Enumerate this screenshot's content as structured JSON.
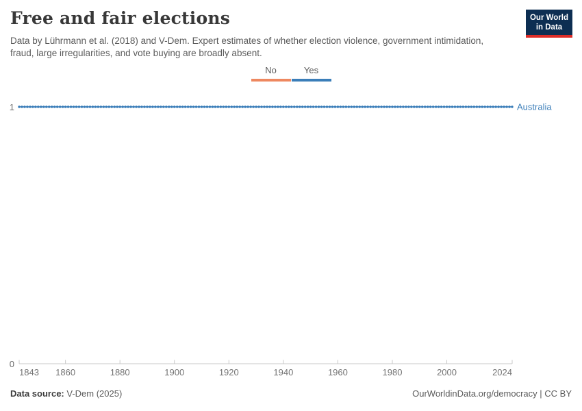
{
  "header": {
    "title": "Free and fair elections",
    "subtitle": "Data by Lührmann et al. (2018) and V-Dem. Expert estimates of whether election violence, government intimidation, fraud, large irregularities, and vote buying are broadly absent.",
    "logo": {
      "line1": "Our World",
      "line2": "in Data",
      "bg_color": "#0d2e52",
      "accent_color": "#dc2c27"
    }
  },
  "legend": {
    "items": [
      {
        "label": "No",
        "color": "#ee8860"
      },
      {
        "label": "Yes",
        "color": "#3b7eb9"
      }
    ]
  },
  "chart_data": {
    "type": "line",
    "title": "Free and fair elections",
    "xlabel": "",
    "ylabel": "",
    "xlim": [
      1843,
      2024
    ],
    "ylim": [
      0,
      1
    ],
    "grid": false,
    "x_ticks": [
      1843,
      1860,
      1880,
      1900,
      1920,
      1940,
      1960,
      1980,
      2000,
      2024
    ],
    "y_ticks": [
      0,
      1
    ],
    "axis_color": "#c8c8c8",
    "tick_label_color": "#737373",
    "series": [
      {
        "name": "Australia",
        "color": "#3b7eb9",
        "years": {
          "start": 1843,
          "end": 2024,
          "step": 1
        },
        "constant_value": 1,
        "note": "value is 1 (Yes) for every year from 1843 through 2024"
      }
    ],
    "entity_label": "Australia"
  },
  "footer": {
    "source_label": "Data source:",
    "source_value": " V-Dem (2025)",
    "right_text": "OurWorldinData.org/democracy | CC BY"
  }
}
